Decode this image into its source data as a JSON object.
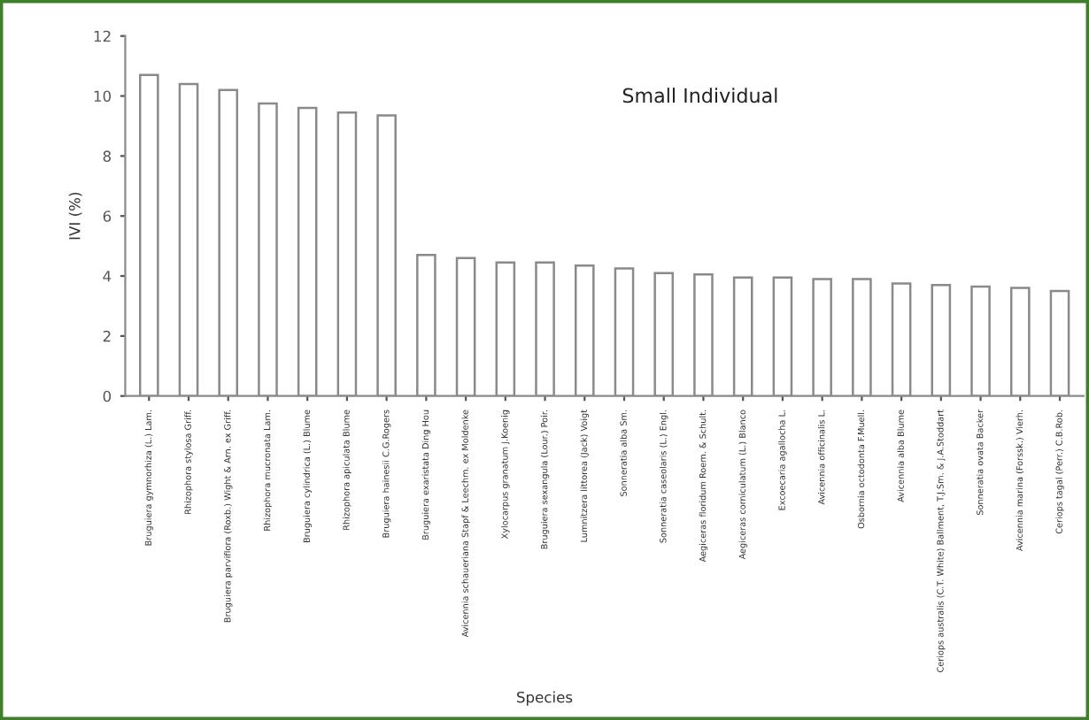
{
  "chart_data": {
    "type": "bar",
    "title": "Small Individual",
    "xlabel": "Species",
    "ylabel": "IVI (%)",
    "categories": [
      "Bruguiera gymnorhiza (L.) Lam.",
      "Rhizophora stylosa Griff.",
      "Bruguiera parviflora (Roxb.) Wight & Arn. ex Griff.",
      "Rhizophora mucronata Lam.",
      "Bruguiera cylindrica (L.) Blume",
      "Rhizophora apiculata Blume",
      "Bruguiera hainesii C.G.Rogers",
      "Bruguiera exaristata Ding Hou",
      "Avicennia schaueriana Stapf & Leechm. ex Moldenke",
      "Xylocarpus granatum J.Koenig",
      "Bruguiera sexangula (Lour.) Poir.",
      "Lumnitzera littorea (Jack) Voigt",
      "Sonneratia alba Sm.",
      "Sonneratia caseolaris (L.) Engl.",
      "Aegiceras floridum Roem. & Schult.",
      "Aegiceras corniculatum (L.) Blanco",
      "Excoecaria agallocha L.",
      "Avicennia officinalis L.",
      "Osbornia octodonta F.Muell.",
      "Avicennia alba Blume",
      "Ceriops australis (C.T. White) Ballment, T.J.Sm. & J.A.Stoddart",
      "Sonneratia ovata Backer",
      "Avicennia marina (Forssk.) Vierh.",
      "Ceriops tagal (Perr.) C.B.Rob."
    ],
    "values": [
      10.7,
      10.4,
      10.2,
      9.75,
      9.6,
      9.45,
      9.35,
      4.7,
      4.6,
      4.45,
      4.45,
      4.35,
      4.25,
      4.1,
      4.05,
      3.95,
      3.95,
      3.9,
      3.9,
      3.75,
      3.7,
      3.65,
      3.6,
      3.5
    ],
    "color": "#ffffff",
    "ylim": [
      0,
      12
    ],
    "yticks": [
      0,
      2,
      4,
      6,
      8,
      10,
      12
    ],
    "grid": false,
    "legend": false
  }
}
